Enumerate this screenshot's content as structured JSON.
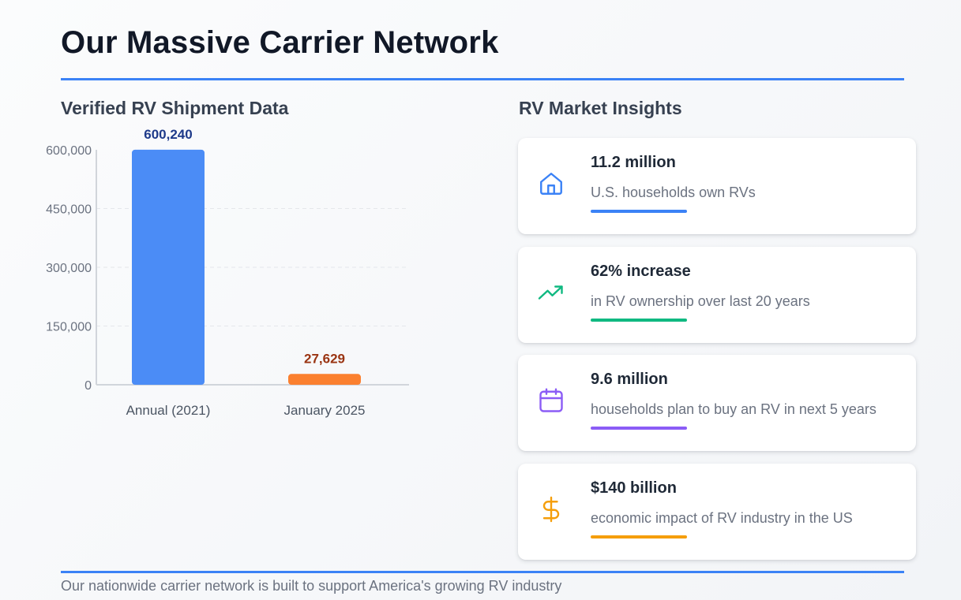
{
  "header": {
    "title": "Our Massive Carrier Network"
  },
  "chart_data": {
    "type": "bar",
    "title": "Verified RV Shipment Data",
    "xlabel": "",
    "ylabel": "",
    "categories": [
      "Annual (2021)",
      "January 2025"
    ],
    "values": [
      600240,
      27629
    ],
    "value_labels": [
      "600,240",
      "27,629"
    ],
    "bar_colors": [
      "#4b8cf6",
      "#fb802f"
    ],
    "value_label_colors": [
      "#1e3a8a",
      "#9a3412"
    ],
    "ylim": [
      0,
      600000
    ],
    "yticks": [
      0,
      150000,
      300000,
      450000,
      600000
    ],
    "ytick_labels": [
      "0",
      "150,000",
      "300,000",
      "450,000",
      "600,000"
    ],
    "grid": true
  },
  "insights": {
    "title": "RV Market Insights",
    "cards": [
      {
        "value": "11.2 million",
        "desc": "U.S. households own RVs",
        "icon": "home-icon",
        "color": "#3b82f6"
      },
      {
        "value": "62% increase",
        "desc": "in RV ownership over last 20 years",
        "icon": "trending-up-icon",
        "color": "#10b981"
      },
      {
        "value": "9.6 million",
        "desc": "households plan to buy an RV in next 5 years",
        "icon": "calendar-icon",
        "color": "#8b5cf6"
      },
      {
        "value": "$140 billion",
        "desc": "economic impact of RV industry in the US",
        "icon": "dollar-sign-icon",
        "color": "#f59e0b"
      }
    ]
  },
  "footer": {
    "text": "Our nationwide carrier network is built to support America's growing RV industry"
  }
}
